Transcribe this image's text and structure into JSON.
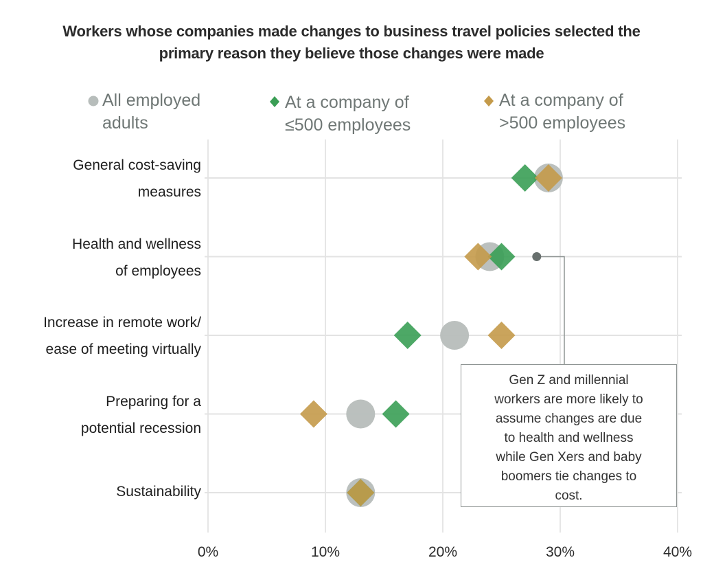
{
  "chart_data": {
    "type": "scatter",
    "subtype": "dot-plot",
    "title": "Workers whose companies made changes to business travel policies selected the primary reason they believe those changes were made",
    "title_lines": [
      "Workers whose companies made changes to business travel policies selected the",
      "primary reason they believe those changes were made"
    ],
    "xlabel": "",
    "ylabel": "",
    "xlim": [
      0,
      40
    ],
    "x_unit": "%",
    "x_ticks": [
      "0%",
      "10%",
      "20%",
      "30%",
      "40%"
    ],
    "x_tick_values": [
      0,
      10,
      20,
      30,
      40
    ],
    "grid": true,
    "legend_position": "top",
    "categories": [
      "General cost-saving measures",
      "Health and wellness of employees",
      "Increase in remote work/ ease of meeting virtually",
      "Preparing for a potential recession",
      "Sustainability"
    ],
    "category_label_lines": [
      [
        "General cost-saving",
        "measures"
      ],
      [
        "Health and wellness",
        "of employees"
      ],
      [
        "Increase in remote work/",
        "ease of meeting virtually"
      ],
      [
        "Preparing for a",
        "potential recession"
      ],
      [
        "Sustainability"
      ]
    ],
    "series": [
      {
        "name": "All employed adults",
        "legend_lines": [
          "All employed",
          "adults"
        ],
        "marker": "circle",
        "color": "#b7bdbb",
        "values": [
          29,
          24,
          21,
          13,
          13
        ]
      },
      {
        "name": "At a company of ≤500 employees",
        "legend_lines": [
          "At a company of",
          "≤500 employees"
        ],
        "marker": "diamond",
        "color": "#3a9e55",
        "values": [
          27,
          25,
          17,
          16,
          13
        ]
      },
      {
        "name": "At a company of >500 employees",
        "legend_lines": [
          "At a company of",
          ">500 employees"
        ],
        "marker": "diamond",
        "color": "#c49a4a",
        "values": [
          29,
          23,
          25,
          9,
          13
        ]
      }
    ],
    "annotation": {
      "text": "Gen Z and millennial workers are more likely to assume changes are due to health and wellness while Gen Xers and baby boomers tie changes to cost.",
      "lines": [
        "Gen Z and millennial",
        "workers are more likely to",
        "assume changes are due",
        "to health and wellness",
        "while Gen Xers and baby",
        "boomers tie changes to",
        "cost."
      ],
      "category": "Health and wellness of employees",
      "pointer_value": 28,
      "pointer_color": "#68706e"
    }
  }
}
